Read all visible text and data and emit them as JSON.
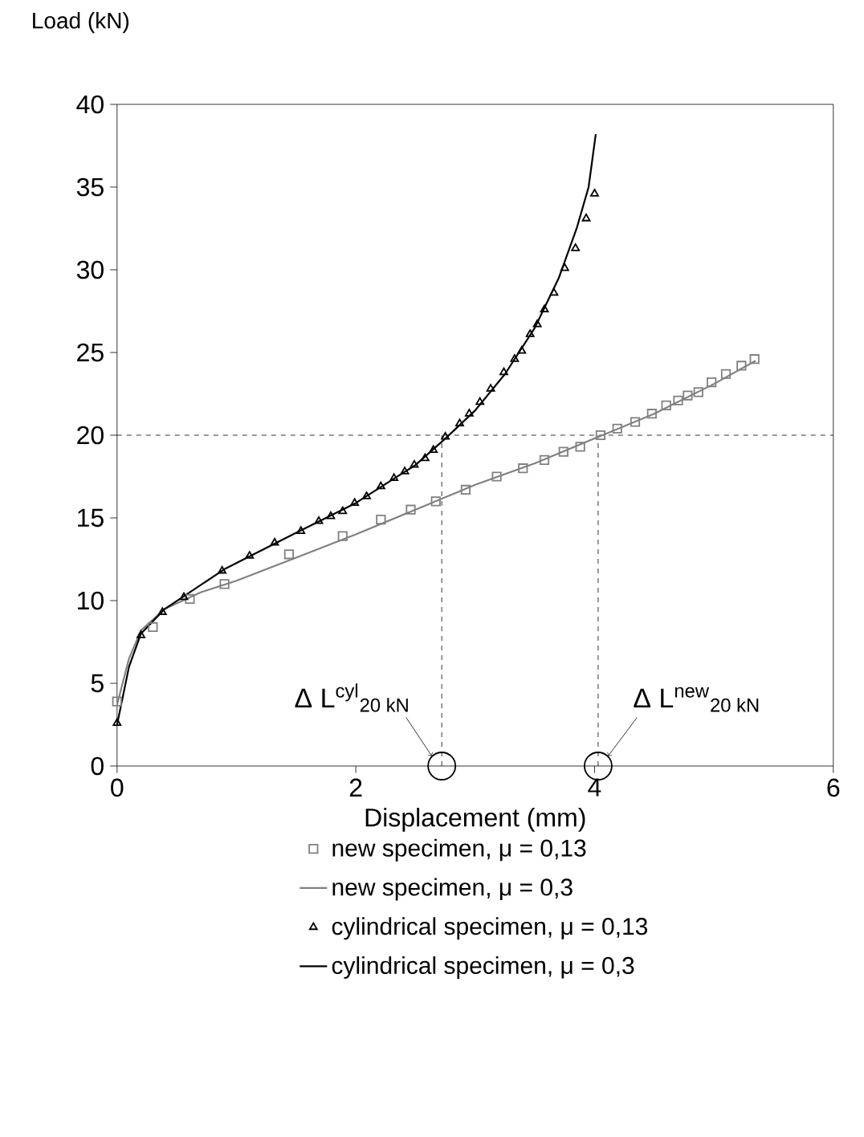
{
  "chart_data": {
    "type": "line",
    "xlabel": "Displacement (mm)",
    "ylabel": "Load (kN)",
    "xlim": [
      0,
      6
    ],
    "ylim": [
      0,
      40
    ],
    "xticks": [
      0,
      2,
      4,
      6
    ],
    "yticks": [
      0,
      5,
      10,
      15,
      20,
      25,
      30,
      35,
      40
    ],
    "legend": "bottom",
    "series": [
      {
        "name": "new specimen,  μ = 0,13",
        "type": "scatter",
        "marker": "square",
        "color": "#808080",
        "x": [
          0,
          0.3,
          0.61,
          0.9,
          1.44,
          1.89,
          2.21,
          2.46,
          2.67,
          2.92,
          3.18,
          3.4,
          3.58,
          3.74,
          3.88,
          4.05,
          4.19,
          4.34,
          4.48,
          4.6,
          4.7,
          4.78,
          4.87,
          4.98,
          5.1,
          5.23,
          5.34
        ],
        "values": [
          3.9,
          8.4,
          10.1,
          11.0,
          12.8,
          13.9,
          14.9,
          15.5,
          16.0,
          16.7,
          17.5,
          18.0,
          18.5,
          19.0,
          19.3,
          20.0,
          20.4,
          20.8,
          21.3,
          21.8,
          22.1,
          22.4,
          22.6,
          23.2,
          23.7,
          24.2,
          24.6
        ]
      },
      {
        "name": "new specimen,  μ = 0,3",
        "marker": "none",
        "color": "#808080",
        "x": [
          0,
          0.1,
          0.2,
          0.4,
          0.7,
          1.0,
          1.5,
          2.0,
          2.5,
          3.0,
          3.5,
          4.0,
          4.5,
          5.0,
          5.35
        ],
        "values": [
          3.7,
          6.5,
          8.2,
          9.5,
          10.5,
          11.2,
          12.6,
          14.0,
          15.5,
          17.0,
          18.3,
          19.8,
          21.3,
          23.1,
          24.5
        ]
      },
      {
        "name": "cylindrical specimen,  μ = 0,13",
        "type": "scatter",
        "marker": "triangle",
        "color": "#000000",
        "x": [
          0,
          0.2,
          0.38,
          0.56,
          0.88,
          1.11,
          1.32,
          1.54,
          1.69,
          1.79,
          1.89,
          1.99,
          2.09,
          2.21,
          2.32,
          2.41,
          2.49,
          2.58,
          2.65,
          2.75,
          2.87,
          2.95,
          3.04,
          3.13,
          3.24,
          3.33,
          3.39,
          3.46,
          3.52,
          3.58,
          3.66,
          3.75,
          3.84,
          3.93,
          4.0
        ],
        "values": [
          2.6,
          7.9,
          9.3,
          10.2,
          11.8,
          12.7,
          13.5,
          14.2,
          14.8,
          15.1,
          15.4,
          15.9,
          16.3,
          16.9,
          17.4,
          17.8,
          18.2,
          18.6,
          19.1,
          19.9,
          20.7,
          21.3,
          22.0,
          22.8,
          23.8,
          24.6,
          25.1,
          26.1,
          26.7,
          27.6,
          28.6,
          30.1,
          31.3,
          33.1,
          34.6
        ]
      },
      {
        "name": "cylindrical specimen,  μ = 0,3",
        "marker": "none",
        "color": "#000000",
        "x": [
          0,
          0.1,
          0.2,
          0.4,
          0.9,
          1.5,
          2.0,
          2.5,
          2.75,
          3.0,
          3.25,
          3.5,
          3.7,
          3.85,
          3.95,
          4.01
        ],
        "values": [
          2.5,
          6.0,
          8.0,
          9.5,
          11.9,
          14.1,
          15.9,
          18.2,
          19.8,
          21.5,
          23.7,
          26.5,
          29.5,
          32.5,
          35.0,
          38.2
        ]
      },
      {
        "type": "scatter",
        "marker": "circle",
        "color": "#000000",
        "x": [
          2.72,
          4.03
        ],
        "values": [
          0,
          0
        ]
      }
    ],
    "ref_lines": [
      {
        "axis": "y",
        "value": 20,
        "line_style": "dashed"
      },
      {
        "axis": "x",
        "value": 2.72,
        "line_style": "dashed"
      },
      {
        "axis": "x",
        "value": 4.03,
        "line_style": "dashed"
      }
    ],
    "annotations": [
      {
        "text": "Δ L$^{cyl}$$_{20 kN}$",
        "x": 2.72,
        "y": 0
      },
      {
        "text": "Δ L$^{new}$$_{20 kN}$",
        "x": 4.03,
        "y": 0
      }
    ]
  }
}
